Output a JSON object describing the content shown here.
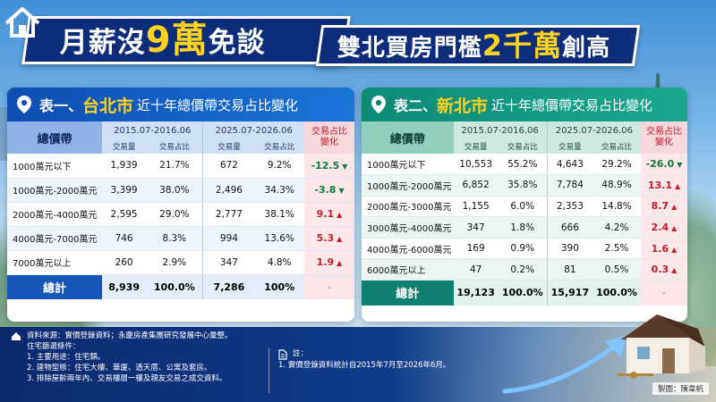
{
  "title": {
    "banner1_pre": "月薪沒",
    "banner1_hl": "9萬",
    "banner1_post": "免談",
    "banner2_pre": "雙北買房門檻",
    "banner2_hl": "2千萬",
    "banner2_post": "創高"
  },
  "table1": {
    "prefix": "表一、",
    "city": "台北市",
    "subtitle": "近十年總價帶交易占比變化",
    "cat_header": "總價帶",
    "period1": "2015.07-2016.06",
    "period2": "2025.07-2026.06",
    "change_header_line1": "交易占比",
    "change_header_line2": "變化",
    "sub_count": "交易量",
    "sub_share": "交易占比",
    "rows": [
      {
        "label": "1000萬元以下",
        "c1": "1,939",
        "s1": "21.7%",
        "c2": "672",
        "s2": "9.2%",
        "chg": "-12.5",
        "dir": "down"
      },
      {
        "label": "1000萬元-2000萬元",
        "c1": "3,399",
        "s1": "38.0%",
        "c2": "2,496",
        "s2": "34.3%",
        "chg": "-3.8",
        "dir": "down"
      },
      {
        "label": "2000萬元-4000萬元",
        "c1": "2,595",
        "s1": "29.0%",
        "c2": "2,777",
        "s2": "38.1%",
        "chg": "9.1",
        "dir": "up"
      },
      {
        "label": "4000萬元-7000萬元",
        "c1": "746",
        "s1": "8.3%",
        "c2": "994",
        "s2": "13.6%",
        "chg": "5.3",
        "dir": "up"
      },
      {
        "label": "7000萬元以上",
        "c1": "260",
        "s1": "2.9%",
        "c2": "347",
        "s2": "4.8%",
        "chg": "1.9",
        "dir": "up"
      }
    ],
    "total": {
      "label": "總計",
      "c1": "8,939",
      "s1": "100.0%",
      "c2": "7,286",
      "s2": "100%",
      "chg": "-"
    }
  },
  "table2": {
    "prefix": "表二、",
    "city": "新北市",
    "subtitle": "近十年總價帶交易占比變化",
    "cat_header": "總價帶",
    "period1": "2015.07-2016.06",
    "period2": "2025.07-2026.06",
    "change_header_line1": "交易占比",
    "change_header_line2": "變化",
    "sub_count": "交易量",
    "sub_share": "交易占比",
    "rows": [
      {
        "label": "1000萬元以下",
        "c1": "10,553",
        "s1": "55.2%",
        "c2": "4,643",
        "s2": "29.2%",
        "chg": "-26.0",
        "dir": "down"
      },
      {
        "label": "1000萬元-2000萬元",
        "c1": "6,852",
        "s1": "35.8%",
        "c2": "7,784",
        "s2": "48.9%",
        "chg": "13.1",
        "dir": "up"
      },
      {
        "label": "2000萬元-3000萬元",
        "c1": "1,155",
        "s1": "6.0%",
        "c2": "2,353",
        "s2": "14.8%",
        "chg": "8.7",
        "dir": "up"
      },
      {
        "label": "3000萬元-4000萬元",
        "c1": "347",
        "s1": "1.8%",
        "c2": "666",
        "s2": "4.2%",
        "chg": "2.4",
        "dir": "up"
      },
      {
        "label": "4000萬元-6000萬元",
        "c1": "169",
        "s1": "0.9%",
        "c2": "390",
        "s2": "2.5%",
        "chg": "1.6",
        "dir": "up"
      },
      {
        "label": "6000萬元以上",
        "c1": "47",
        "s1": "0.2%",
        "c2": "81",
        "s2": "0.5%",
        "chg": "0.3",
        "dir": "up"
      }
    ],
    "total": {
      "label": "總計",
      "c1": "19,123",
      "s1": "100.0%",
      "c2": "15,917",
      "s2": "100.0%",
      "chg": "-"
    }
  },
  "footer": {
    "source": "資料來源：實價登錄資料；永慶房產集團研究發展中心彙整。",
    "criteria_title": "住宅篩選條件：",
    "criteria": [
      "1. 主要用途：住宅類。",
      "2. 建物型態：住宅大樓、華廈、透天厝、公寓及套房。",
      "3. 排除屋齡兩年內、交易樓層一樓及親友交易之成交資料。"
    ],
    "note_title": "註：",
    "note_item": "1. 實價登錄資料統計自2015年7月至2026年6月。",
    "credit": "製圖：陳韋帆"
  },
  "icons": {
    "pin": "location-pin-icon",
    "house": "house-icon",
    "document": "document-icon",
    "up": "triangle-up-icon",
    "down": "triangle-down-icon"
  },
  "colors": {
    "title_bg": "#0c2d7a",
    "highlight": "#ffd21f",
    "taipei_accent": "#1557b8",
    "newtaipei_accent": "#12806e",
    "increase": "#c41d2c",
    "decrease": "#0e7a3c"
  }
}
